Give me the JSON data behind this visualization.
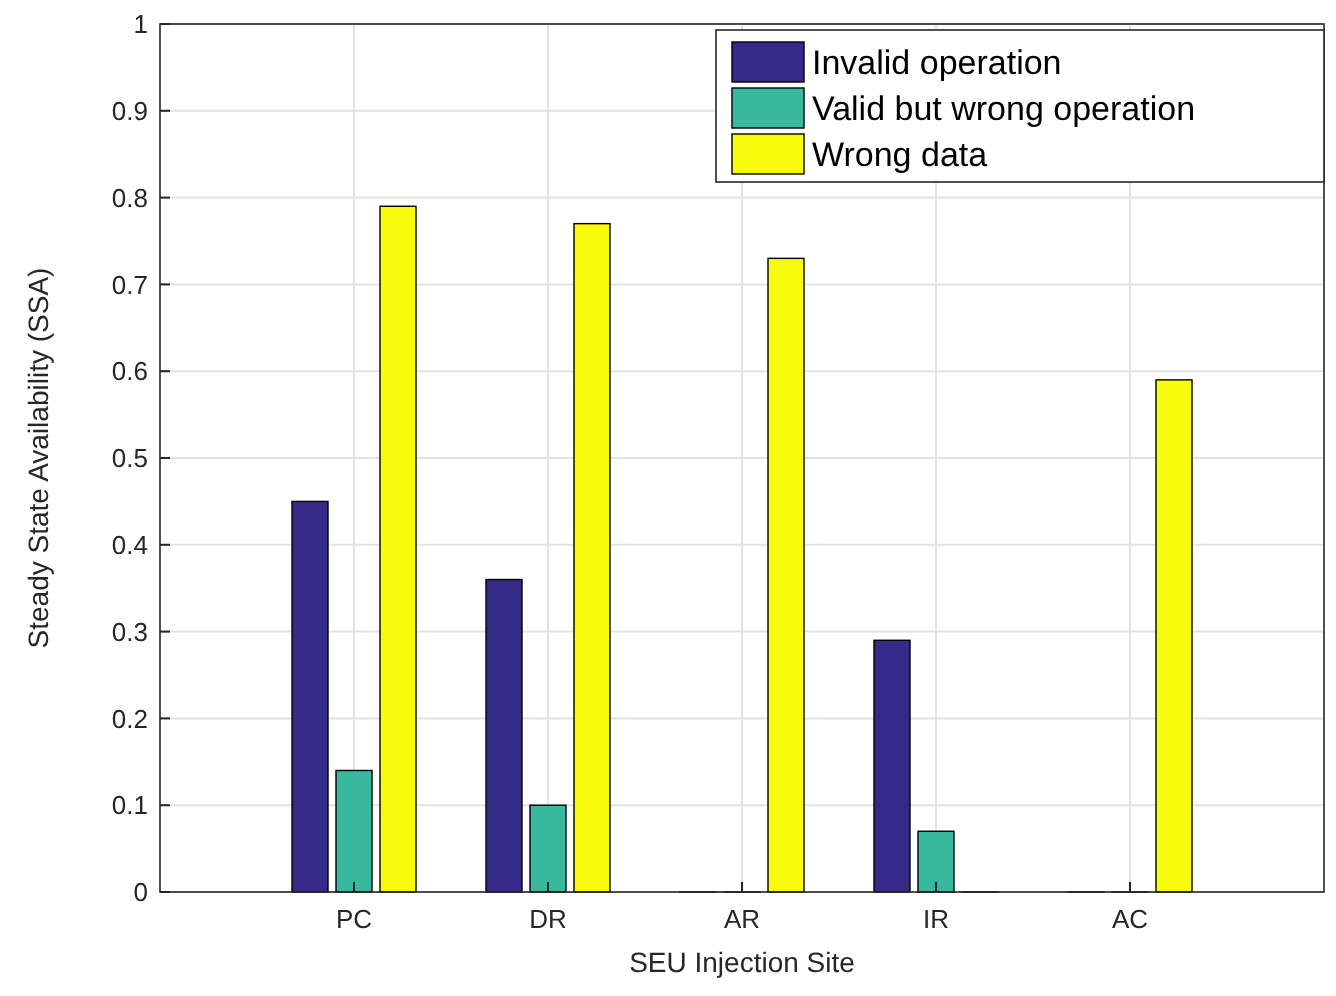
{
  "chart_data": {
    "type": "bar",
    "xlabel": "SEU Injection Site",
    "ylabel": "Steady State Availability (SSA)",
    "categories": [
      "PC",
      "DR",
      "AR",
      "IR",
      "AC"
    ],
    "series": [
      {
        "name": "Invalid operation",
        "color": "#352a87",
        "values": [
          0.45,
          0.36,
          0,
          0.29,
          0
        ]
      },
      {
        "name": "Valid but wrong operation",
        "color": "#38b99e",
        "values": [
          0.14,
          0.1,
          0,
          0.07,
          0
        ]
      },
      {
        "name": "Wrong data",
        "color": "#f9fb0e",
        "values": [
          0.79,
          0.77,
          0.73,
          0,
          0.59
        ]
      }
    ],
    "ylim": [
      0,
      1
    ],
    "yticks": [
      0,
      0.1,
      0.2,
      0.3,
      0.4,
      0.5,
      0.6,
      0.7,
      0.8,
      0.9,
      1
    ],
    "grid": true,
    "legend": "top right"
  }
}
